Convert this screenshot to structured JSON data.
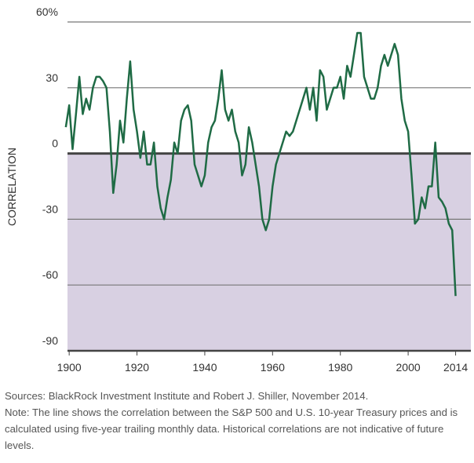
{
  "chart_data": {
    "type": "line",
    "y_label": "CORRELATION",
    "x": [
      1899,
      1900,
      1901,
      1902,
      1903,
      1904,
      1905,
      1906,
      1907,
      1908,
      1909,
      1910,
      1911,
      1912,
      1913,
      1914,
      1915,
      1916,
      1917,
      1918,
      1919,
      1920,
      1921,
      1922,
      1923,
      1924,
      1925,
      1926,
      1927,
      1928,
      1929,
      1930,
      1931,
      1932,
      1933,
      1934,
      1935,
      1936,
      1937,
      1938,
      1939,
      1940,
      1941,
      1942,
      1943,
      1944,
      1945,
      1946,
      1947,
      1948,
      1949,
      1950,
      1951,
      1952,
      1953,
      1954,
      1955,
      1956,
      1957,
      1958,
      1959,
      1960,
      1961,
      1962,
      1963,
      1964,
      1965,
      1966,
      1967,
      1968,
      1969,
      1970,
      1971,
      1972,
      1973,
      1974,
      1975,
      1976,
      1977,
      1978,
      1979,
      1980,
      1981,
      1982,
      1983,
      1984,
      1985,
      1986,
      1987,
      1988,
      1989,
      1990,
      1991,
      1992,
      1993,
      1994,
      1995,
      1996,
      1997,
      1998,
      1999,
      2000,
      2001,
      2002,
      2003,
      2004,
      2005,
      2006,
      2007,
      2008,
      2009,
      2010,
      2011,
      2012,
      2013,
      2014
    ],
    "values": [
      12,
      22,
      2,
      18,
      35,
      18,
      25,
      20,
      30,
      35,
      35,
      33,
      30,
      10,
      -18,
      -5,
      15,
      5,
      25,
      42,
      20,
      10,
      -2,
      10,
      -5,
      -5,
      5,
      -15,
      -25,
      -30,
      -20,
      -12,
      5,
      0,
      15,
      20,
      22,
      15,
      -5,
      -10,
      -15,
      -10,
      5,
      12,
      15,
      25,
      38,
      20,
      15,
      20,
      10,
      5,
      -10,
      -5,
      12,
      5,
      -5,
      -15,
      -30,
      -35,
      -30,
      -15,
      -5,
      0,
      5,
      10,
      8,
      10,
      15,
      20,
      25,
      30,
      20,
      30,
      15,
      38,
      35,
      20,
      25,
      30,
      30,
      35,
      25,
      40,
      35,
      45,
      55,
      55,
      35,
      30,
      25,
      25,
      30,
      40,
      45,
      40,
      45,
      50,
      45,
      25,
      15,
      10,
      -10,
      -32,
      -30,
      -20,
      -25,
      -15,
      -15,
      5,
      -20,
      -22,
      -25,
      -32,
      -35,
      -65
    ],
    "color": "#1f6b45",
    "negative_fill": "#d8d0e2",
    "xlim": [
      1899.5,
      2018.5
    ],
    "xticks": [
      1900,
      1920,
      1940,
      1960,
      1980,
      2000,
      2014
    ],
    "ylim": [
      -90,
      60
    ],
    "yticks": [
      -90,
      -60,
      -30,
      0,
      30,
      {
        "value": 60,
        "label": "60%"
      }
    ],
    "grid": true,
    "source": "Sources: BlackRock Investment Institute and Robert J. Shiller, November 2014.",
    "note": "Note: The line shows the correlation between the S&P 500 and U.S. 10-year Treasury prices and is calculated using five-year trailing monthly data. Historical correlations are not indicative of future levels."
  }
}
